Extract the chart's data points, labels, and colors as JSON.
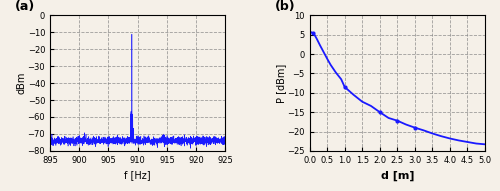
{
  "subplot_a": {
    "label": "(a)",
    "xlim": [
      895,
      925
    ],
    "ylim": [
      -80,
      0
    ],
    "xticks": [
      895,
      900,
      905,
      910,
      915,
      920,
      925
    ],
    "yticks": [
      0,
      -10,
      -20,
      -30,
      -40,
      -50,
      -60,
      -70,
      -80
    ],
    "xlabel": "f [Hz]",
    "ylabel": "dBm",
    "noise_floor": -74.0,
    "noise_std": 1.2,
    "spike_freq": 909.0,
    "spike_top": -10,
    "line_color": "#1a1aff",
    "bg_color": "#f5f0e8"
  },
  "subplot_b": {
    "label": "(b)",
    "xlim": [
      0,
      5
    ],
    "ylim": [
      -25,
      10
    ],
    "xticks": [
      0,
      0.5,
      1.0,
      1.5,
      2.0,
      2.5,
      3.0,
      3.5,
      4.0,
      4.5,
      5.0
    ],
    "yticks": [
      10,
      5,
      0,
      -5,
      -10,
      -15,
      -20,
      -25
    ],
    "xlabel": "d [m]",
    "ylabel": "P [dBm]",
    "d_values": [
      0.05,
      0.1,
      0.15,
      0.2,
      0.3,
      0.4,
      0.5,
      0.6,
      0.75,
      0.9,
      1.0,
      1.25,
      1.5,
      1.75,
      2.0,
      2.25,
      2.5,
      2.75,
      3.0,
      3.25,
      3.5,
      3.75,
      4.0,
      4.25,
      4.5,
      4.75,
      5.0
    ],
    "p_values": [
      5.6,
      5.4,
      4.8,
      4.0,
      2.2,
      0.5,
      -1.2,
      -2.8,
      -4.8,
      -6.5,
      -8.5,
      -10.5,
      -12.3,
      -13.4,
      -15.0,
      -16.5,
      -17.2,
      -18.2,
      -19.0,
      -19.7,
      -20.5,
      -21.2,
      -21.8,
      -22.3,
      -22.7,
      -23.1,
      -23.3
    ],
    "line_color": "#1a1aff",
    "bg_color": "#f5f0e8",
    "marker_positions": [
      [
        0.1,
        5.4
      ],
      [
        1.0,
        -8.5
      ],
      [
        2.0,
        -15.0
      ],
      [
        2.5,
        -17.2
      ],
      [
        3.0,
        -19.0
      ]
    ]
  },
  "fig_bg_color": "#f5f0e8"
}
